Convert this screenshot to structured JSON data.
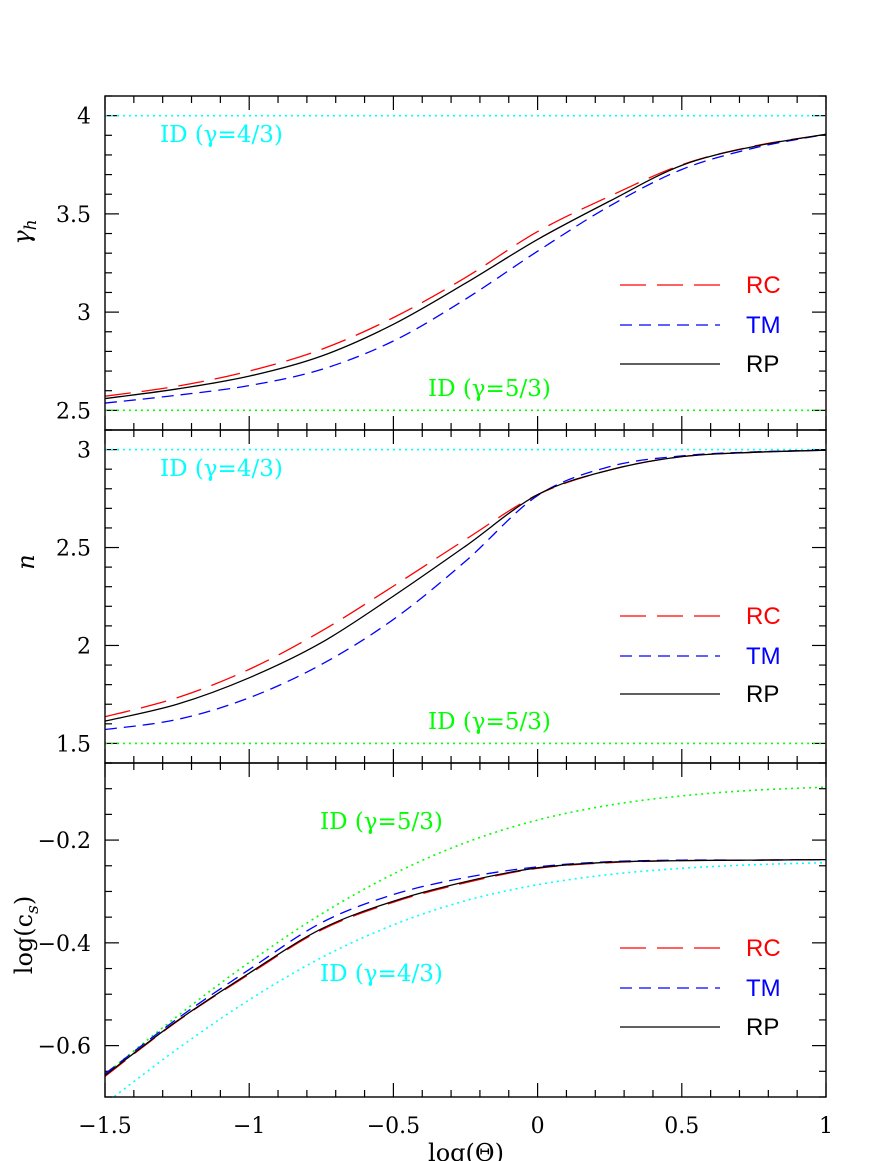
{
  "chart_data": [
    {
      "type": "line",
      "panel": "top",
      "ylabel": {
        "main": "γ",
        "sub": "h",
        "tail": ""
      },
      "xlim": [
        -1.5,
        1
      ],
      "ylim": [
        2.4,
        4.1
      ],
      "xticks": {
        "major_step": 0.5,
        "minor_step": 0.1,
        "labels_shown": false
      },
      "yticks": {
        "major_step": 0.5,
        "minor_step": 0.1,
        "values": [
          4,
          3.5,
          3,
          2.5
        ],
        "labels": [
          "4",
          "3.5",
          "3",
          "2.5"
        ]
      },
      "x": [
        -1.5,
        -1.25,
        -1,
        -0.75,
        -0.5,
        -0.25,
        0,
        0.25,
        0.5,
        0.75,
        1
      ],
      "series": [
        {
          "name": "RC",
          "color": "#ff0000",
          "style": "long-dash",
          "values": [
            2.572,
            2.623,
            2.7,
            2.81,
            2.972,
            3.176,
            3.41,
            3.59,
            3.75,
            3.845,
            3.905
          ]
        },
        {
          "name": "TM",
          "color": "#0000ff",
          "style": "short-dash",
          "values": [
            2.537,
            2.577,
            2.626,
            2.708,
            2.853,
            3.066,
            3.31,
            3.54,
            3.726,
            3.835,
            3.905
          ]
        },
        {
          "name": "RP",
          "color": "#000000",
          "style": "solid",
          "values": [
            2.56,
            2.609,
            2.674,
            2.776,
            2.938,
            3.147,
            3.37,
            3.565,
            3.747,
            3.843,
            3.905
          ]
        }
      ],
      "reference_series": [
        {
          "label": "ID (γ=4/3)",
          "color": "#00ffff",
          "style": "dotted",
          "values": [
            4,
            4,
            4,
            4,
            4,
            4,
            4,
            4,
            4,
            4,
            4
          ]
        },
        {
          "label": "ID (γ=5/3)",
          "color": "#00ff00",
          "style": "dotted",
          "values": [
            2.5,
            2.5,
            2.5,
            2.5,
            2.5,
            2.5,
            2.5,
            2.5,
            2.5,
            2.5,
            2.5
          ]
        }
      ],
      "legend": [
        "RC",
        "TM",
        "RP"
      ]
    },
    {
      "type": "line",
      "panel": "middle",
      "ylabel": {
        "main": "n",
        "sub": "",
        "tail": ""
      },
      "xlim": [
        -1.5,
        1
      ],
      "ylim": [
        1.4,
        3.1
      ],
      "xticks": {
        "major_step": 0.5,
        "minor_step": 0.1,
        "labels_shown": false
      },
      "yticks": {
        "major_step": 0.5,
        "minor_step": 0.1,
        "values": [
          3,
          2.5,
          2,
          1.5
        ],
        "labels": [
          "3",
          "2.5",
          "2",
          "1.5"
        ]
      },
      "x": [
        -1.5,
        -1.25,
        -1,
        -0.75,
        -0.5,
        -0.25,
        0,
        0.25,
        0.5,
        0.75,
        1
      ],
      "series": [
        {
          "name": "RC",
          "color": "#ff0000",
          "style": "long-dash",
          "values": [
            1.636,
            1.733,
            1.878,
            2.073,
            2.303,
            2.541,
            2.77,
            2.896,
            2.964,
            2.986,
            2.997
          ]
        },
        {
          "name": "TM",
          "color": "#0000ff",
          "style": "short-dash",
          "values": [
            1.571,
            1.622,
            1.733,
            1.903,
            2.133,
            2.43,
            2.765,
            2.913,
            2.968,
            2.988,
            2.997
          ]
        },
        {
          "name": "RP",
          "color": "#000000",
          "style": "solid",
          "values": [
            1.614,
            1.7,
            1.835,
            2.014,
            2.252,
            2.507,
            2.77,
            2.896,
            2.964,
            2.986,
            2.997
          ]
        }
      ],
      "reference_series": [
        {
          "label": "ID (γ=4/3)",
          "color": "#00ffff",
          "style": "dotted",
          "values": [
            3,
            3,
            3,
            3,
            3,
            3,
            3,
            3,
            3,
            3,
            3
          ]
        },
        {
          "label": "ID (γ=5/3)",
          "color": "#00ff00",
          "style": "dotted",
          "values": [
            1.5,
            1.5,
            1.5,
            1.5,
            1.5,
            1.5,
            1.5,
            1.5,
            1.5,
            1.5,
            1.5
          ]
        }
      ],
      "legend": [
        "RC",
        "TM",
        "RP"
      ]
    },
    {
      "type": "line",
      "panel": "bottom",
      "ylabel": {
        "main": "log(c",
        "sub": "s",
        "tail": ")"
      },
      "xlabel": "log(Θ)",
      "xlim": [
        -1.5,
        1
      ],
      "ylim": [
        -0.7,
        -0.05
      ],
      "xticks": {
        "major_step": 0.5,
        "minor_step": 0.1,
        "labels_shown": true,
        "values": [
          -1.5,
          -1,
          -0.5,
          0,
          0.5,
          1
        ],
        "labels": [
          "−1.5",
          "−1",
          "−0.5",
          "0",
          "0.5",
          "1"
        ]
      },
      "yticks": {
        "major_step": 0.2,
        "minor_step": 0.05,
        "values": [
          -0.2,
          -0.4,
          -0.6
        ],
        "labels": [
          "−0.2",
          "−0.4",
          "−0.6"
        ]
      },
      "x": [
        -1.5,
        -1.25,
        -1,
        -0.75,
        -0.5,
        -0.25,
        0,
        0.25,
        0.5,
        0.75,
        1
      ],
      "series": [
        {
          "name": "RC",
          "color": "#ff0000",
          "style": "long-dash",
          "values": [
            -0.66,
            -0.553,
            -0.461,
            -0.375,
            -0.321,
            -0.283,
            -0.255,
            -0.244,
            -0.24,
            -0.239,
            -0.238
          ]
        },
        {
          "name": "TM",
          "color": "#0000ff",
          "style": "short-dash",
          "values": [
            -0.655,
            -0.548,
            -0.452,
            -0.361,
            -0.306,
            -0.273,
            -0.252,
            -0.242,
            -0.239,
            -0.239,
            -0.238
          ]
        },
        {
          "name": "RP",
          "color": "#000000",
          "style": "solid",
          "values": [
            -0.658,
            -0.552,
            -0.459,
            -0.373,
            -0.319,
            -0.281,
            -0.254,
            -0.243,
            -0.24,
            -0.239,
            -0.238
          ]
        }
      ],
      "reference_series": [
        {
          "label": "ID (γ=5/3)",
          "color": "#00ff00",
          "style": "dotted",
          "values": [
            -0.656,
            -0.543,
            -0.438,
            -0.344,
            -0.266,
            -0.205,
            -0.161,
            -0.132,
            -0.114,
            -0.103,
            -0.097
          ]
        },
        {
          "label": "ID (γ=4/3)",
          "color": "#00ffff",
          "style": "dotted",
          "values": [
            -0.713,
            -0.607,
            -0.511,
            -0.429,
            -0.365,
            -0.318,
            -0.287,
            -0.267,
            -0.255,
            -0.248,
            -0.244
          ]
        }
      ],
      "legend": [
        "RC",
        "TM",
        "RP"
      ]
    }
  ]
}
